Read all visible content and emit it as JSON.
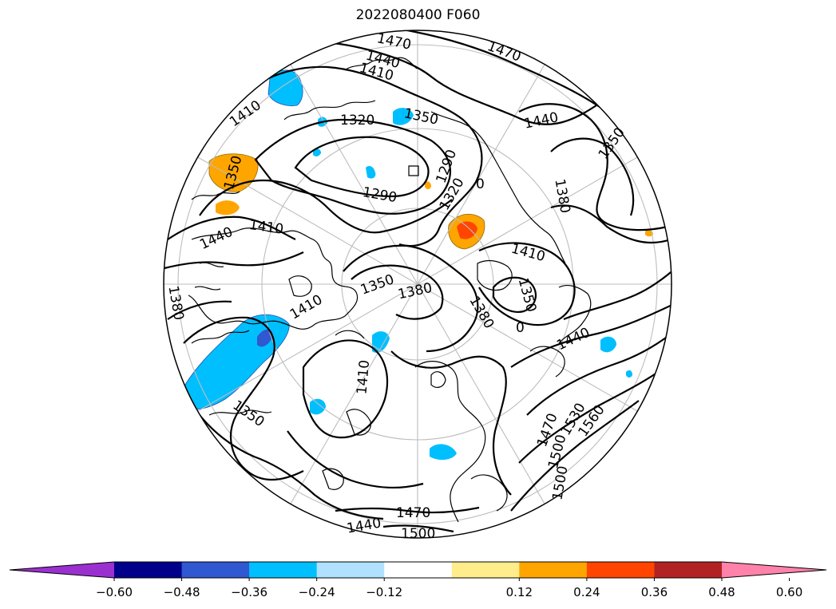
{
  "title": "2022080400 F060",
  "colors": {
    "contour": "#000000",
    "graticule": "#bdbdbd",
    "ocean": "#ffffff"
  },
  "colorbar": {
    "bins": [
      "#9b30d0",
      "#00008b",
      "#3058d0",
      "#00bfff",
      "#b0e2ff",
      "#ffffff",
      "#ffec8b",
      "#ffa500",
      "#ff4500",
      "#b22222",
      "#ff82ab"
    ],
    "ticks": [
      "−0.60",
      "−0.48",
      "−0.36",
      "−0.24",
      "−0.12",
      "0.12",
      "0.24",
      "0.36",
      "0.48",
      "0.60"
    ],
    "extend": "both"
  },
  "contour_labels": [
    "1470",
    "1440",
    "1410",
    "1320",
    "1350",
    "1410",
    "1350",
    "1290",
    "1290",
    "1320",
    "1440",
    "1350",
    "1380",
    "1410",
    "1440",
    "1410",
    "1350",
    "1380",
    "1350",
    "1380",
    "1380",
    "1410",
    "1350",
    "1410",
    "1440",
    "1470",
    "1500",
    "1530",
    "1560",
    "1470",
    "1500",
    "1470",
    "1440",
    "1500",
    "0",
    "0"
  ]
}
